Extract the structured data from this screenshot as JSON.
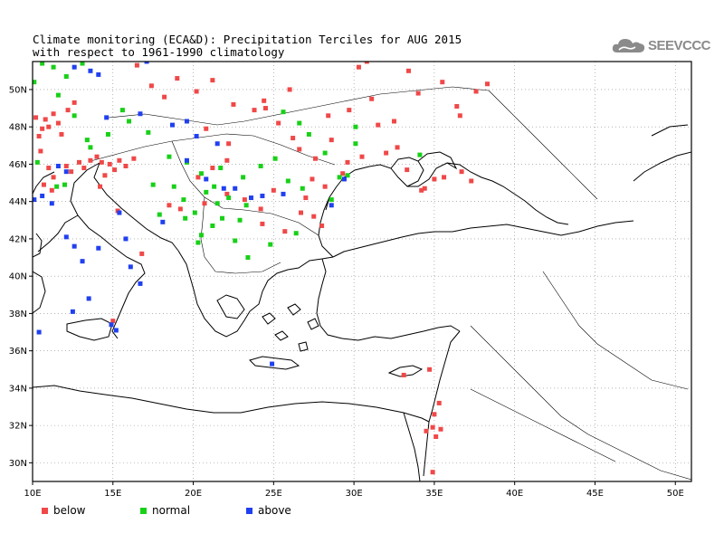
{
  "title": {
    "line1": "Climate monitoring (ECA&D): Precipitation Terciles for AUG 2015",
    "line2": "with respect to 1961-1990 climatology"
  },
  "logo": {
    "text": "SEEVCCC",
    "icon": "cloud-icon",
    "color": "#8a8a8a"
  },
  "map": {
    "lon_range": [
      10,
      51
    ],
    "lat_range": [
      29,
      51.5
    ],
    "x_ticks": [
      {
        "value": 10,
        "label": "10E"
      },
      {
        "value": 15,
        "label": "15E"
      },
      {
        "value": 20,
        "label": "20E"
      },
      {
        "value": 25,
        "label": "25E"
      },
      {
        "value": 30,
        "label": "30E"
      },
      {
        "value": 35,
        "label": "35E"
      },
      {
        "value": 40,
        "label": "40E"
      },
      {
        "value": 45,
        "label": "45E"
      },
      {
        "value": 50,
        "label": "50E"
      }
    ],
    "y_ticks": [
      {
        "value": 30,
        "label": "30N"
      },
      {
        "value": 32,
        "label": "32N"
      },
      {
        "value": 34,
        "label": "34N"
      },
      {
        "value": 36,
        "label": "36N"
      },
      {
        "value": 38,
        "label": "38N"
      },
      {
        "value": 40,
        "label": "40N"
      },
      {
        "value": 42,
        "label": "42N"
      },
      {
        "value": 44,
        "label": "44N"
      },
      {
        "value": 46,
        "label": "46N"
      },
      {
        "value": 48,
        "label": "48N"
      },
      {
        "value": 50,
        "label": "50N"
      }
    ],
    "grid": "dotted"
  },
  "legend": [
    {
      "key": "below",
      "label": "below",
      "color": "#f04848"
    },
    {
      "key": "normal",
      "label": "normal",
      "color": "#18d018"
    },
    {
      "key": "above",
      "label": "above",
      "color": "#2040f0"
    }
  ],
  "stations": {
    "below": [
      [
        10.2,
        48.5
      ],
      [
        10.4,
        47.5
      ],
      [
        10.6,
        47.9
      ],
      [
        10.8,
        48.4
      ],
      [
        11.0,
        48.0
      ],
      [
        11.3,
        48.7
      ],
      [
        11.6,
        48.2
      ],
      [
        11.8,
        47.6
      ],
      [
        12.2,
        48.9
      ],
      [
        12.6,
        49.3
      ],
      [
        10.5,
        46.7
      ],
      [
        11.0,
        45.8
      ],
      [
        11.3,
        45.3
      ],
      [
        12.1,
        45.9
      ],
      [
        10.7,
        44.9
      ],
      [
        11.2,
        44.6
      ],
      [
        12.4,
        45.6
      ],
      [
        12.9,
        46.1
      ],
      [
        13.2,
        45.8
      ],
      [
        13.6,
        46.2
      ],
      [
        14.0,
        46.4
      ],
      [
        14.3,
        46.1
      ],
      [
        14.5,
        45.4
      ],
      [
        14.8,
        46.0
      ],
      [
        15.1,
        45.7
      ],
      [
        15.4,
        46.2
      ],
      [
        15.8,
        45.9
      ],
      [
        16.3,
        46.3
      ],
      [
        15.3,
        43.5
      ],
      [
        14.2,
        44.8
      ],
      [
        16.8,
        41.2
      ],
      [
        15.0,
        37.6
      ],
      [
        16.5,
        51.3
      ],
      [
        17.4,
        50.2
      ],
      [
        18.2,
        49.6
      ],
      [
        19.0,
        50.6
      ],
      [
        20.2,
        49.9
      ],
      [
        21.2,
        50.5
      ],
      [
        22.5,
        49.2
      ],
      [
        23.8,
        48.9
      ],
      [
        22.2,
        47.1
      ],
      [
        20.8,
        47.9
      ],
      [
        24.4,
        49.4
      ],
      [
        25.3,
        48.2
      ],
      [
        26.2,
        47.4
      ],
      [
        28.4,
        48.6
      ],
      [
        29.7,
        48.9
      ],
      [
        31.1,
        49.5
      ],
      [
        32.5,
        48.3
      ],
      [
        34.0,
        49.8
      ],
      [
        35.5,
        50.4
      ],
      [
        36.4,
        49.1
      ],
      [
        37.6,
        49.9
      ],
      [
        38.3,
        50.3
      ],
      [
        30.3,
        51.2
      ],
      [
        33.4,
        51.0
      ],
      [
        26.6,
        46.8
      ],
      [
        27.6,
        46.3
      ],
      [
        28.6,
        47.3
      ],
      [
        29.6,
        46.1
      ],
      [
        27.4,
        45.2
      ],
      [
        28.2,
        44.8
      ],
      [
        27.0,
        44.2
      ],
      [
        25.0,
        44.6
      ],
      [
        24.2,
        43.6
      ],
      [
        23.2,
        44.1
      ],
      [
        22.1,
        44.4
      ],
      [
        20.7,
        43.9
      ],
      [
        19.2,
        43.6
      ],
      [
        18.5,
        43.8
      ],
      [
        20.3,
        45.3
      ],
      [
        21.2,
        45.8
      ],
      [
        22.1,
        46.2
      ],
      [
        24.3,
        42.8
      ],
      [
        25.7,
        42.4
      ],
      [
        26.7,
        43.4
      ],
      [
        27.5,
        43.2
      ],
      [
        28.0,
        42.7
      ],
      [
        29.3,
        45.5
      ],
      [
        30.5,
        46.4
      ],
      [
        32.0,
        46.6
      ],
      [
        33.3,
        45.7
      ],
      [
        34.2,
        44.6
      ],
      [
        35.6,
        45.3
      ],
      [
        36.7,
        45.6
      ],
      [
        37.3,
        45.1
      ],
      [
        30.8,
        51.5
      ],
      [
        32.7,
        46.9
      ],
      [
        34.4,
        44.7
      ],
      [
        35.0,
        45.2
      ],
      [
        33.1,
        34.7
      ],
      [
        34.7,
        35.0
      ],
      [
        35.3,
        33.2
      ],
      [
        35.0,
        32.6
      ],
      [
        34.9,
        31.9
      ],
      [
        35.1,
        31.4
      ],
      [
        34.5,
        31.7
      ],
      [
        34.9,
        29.5
      ],
      [
        35.4,
        31.8
      ],
      [
        36.6,
        48.6
      ],
      [
        31.5,
        48.1
      ],
      [
        26.0,
        50.0
      ],
      [
        24.5,
        49.0
      ]
    ],
    "normal": [
      [
        10.1,
        50.4
      ],
      [
        10.6,
        51.4
      ],
      [
        11.3,
        51.2
      ],
      [
        12.1,
        50.7
      ],
      [
        13.1,
        51.4
      ],
      [
        11.6,
        49.7
      ],
      [
        12.6,
        48.6
      ],
      [
        13.4,
        47.3
      ],
      [
        14.7,
        47.6
      ],
      [
        16.0,
        48.3
      ],
      [
        17.2,
        47.7
      ],
      [
        15.6,
        48.9
      ],
      [
        13.6,
        46.9
      ],
      [
        10.3,
        46.1
      ],
      [
        11.5,
        44.8
      ],
      [
        12.0,
        44.9
      ],
      [
        17.5,
        44.9
      ],
      [
        18.5,
        46.4
      ],
      [
        19.6,
        46.1
      ],
      [
        20.5,
        45.5
      ],
      [
        21.3,
        44.8
      ],
      [
        19.4,
        44.1
      ],
      [
        20.1,
        43.4
      ],
      [
        21.5,
        43.9
      ],
      [
        22.2,
        44.2
      ],
      [
        23.1,
        45.3
      ],
      [
        24.2,
        45.9
      ],
      [
        25.1,
        46.3
      ],
      [
        26.6,
        48.2
      ],
      [
        27.2,
        47.6
      ],
      [
        25.9,
        45.1
      ],
      [
        28.2,
        46.6
      ],
      [
        29.1,
        45.3
      ],
      [
        30.1,
        48.0
      ],
      [
        25.6,
        48.8
      ],
      [
        28.6,
        44.1
      ],
      [
        29.6,
        45.4
      ],
      [
        21.8,
        43.1
      ],
      [
        21.2,
        42.7
      ],
      [
        20.5,
        42.2
      ],
      [
        22.6,
        41.9
      ],
      [
        24.8,
        41.7
      ],
      [
        26.4,
        42.3
      ],
      [
        23.3,
        43.8
      ],
      [
        22.9,
        43.0
      ],
      [
        20.8,
        44.5
      ],
      [
        23.4,
        41.0
      ],
      [
        21.7,
        45.8
      ],
      [
        18.8,
        44.8
      ],
      [
        19.5,
        43.1
      ],
      [
        20.3,
        41.8
      ],
      [
        30.1,
        47.1
      ],
      [
        34.1,
        46.5
      ],
      [
        17.9,
        43.3
      ],
      [
        26.8,
        44.7
      ]
    ],
    "above": [
      [
        12.6,
        51.2
      ],
      [
        13.6,
        51.0
      ],
      [
        14.1,
        50.8
      ],
      [
        16.7,
        48.7
      ],
      [
        18.7,
        48.1
      ],
      [
        19.6,
        48.3
      ],
      [
        20.2,
        47.5
      ],
      [
        21.5,
        47.1
      ],
      [
        11.6,
        45.9
      ],
      [
        12.1,
        45.6
      ],
      [
        10.6,
        44.3
      ],
      [
        11.2,
        43.9
      ],
      [
        12.1,
        42.1
      ],
      [
        12.6,
        41.6
      ],
      [
        13.1,
        40.8
      ],
      [
        13.5,
        38.8
      ],
      [
        12.5,
        38.1
      ],
      [
        14.1,
        41.5
      ],
      [
        15.4,
        43.4
      ],
      [
        15.8,
        42.0
      ],
      [
        16.1,
        40.5
      ],
      [
        16.7,
        39.6
      ],
      [
        10.1,
        44.1
      ],
      [
        18.1,
        42.9
      ],
      [
        19.6,
        46.2
      ],
      [
        20.8,
        45.2
      ],
      [
        21.9,
        44.7
      ],
      [
        23.6,
        44.2
      ],
      [
        24.3,
        44.3
      ],
      [
        25.6,
        44.4
      ],
      [
        28.6,
        43.8
      ],
      [
        29.4,
        45.2
      ],
      [
        22.6,
        44.7
      ],
      [
        24.9,
        35.3
      ],
      [
        15.2,
        37.1
      ],
      [
        14.9,
        37.4
      ],
      [
        10.4,
        37.0
      ],
      [
        17.1,
        51.5
      ],
      [
        14.6,
        48.5
      ]
    ]
  }
}
